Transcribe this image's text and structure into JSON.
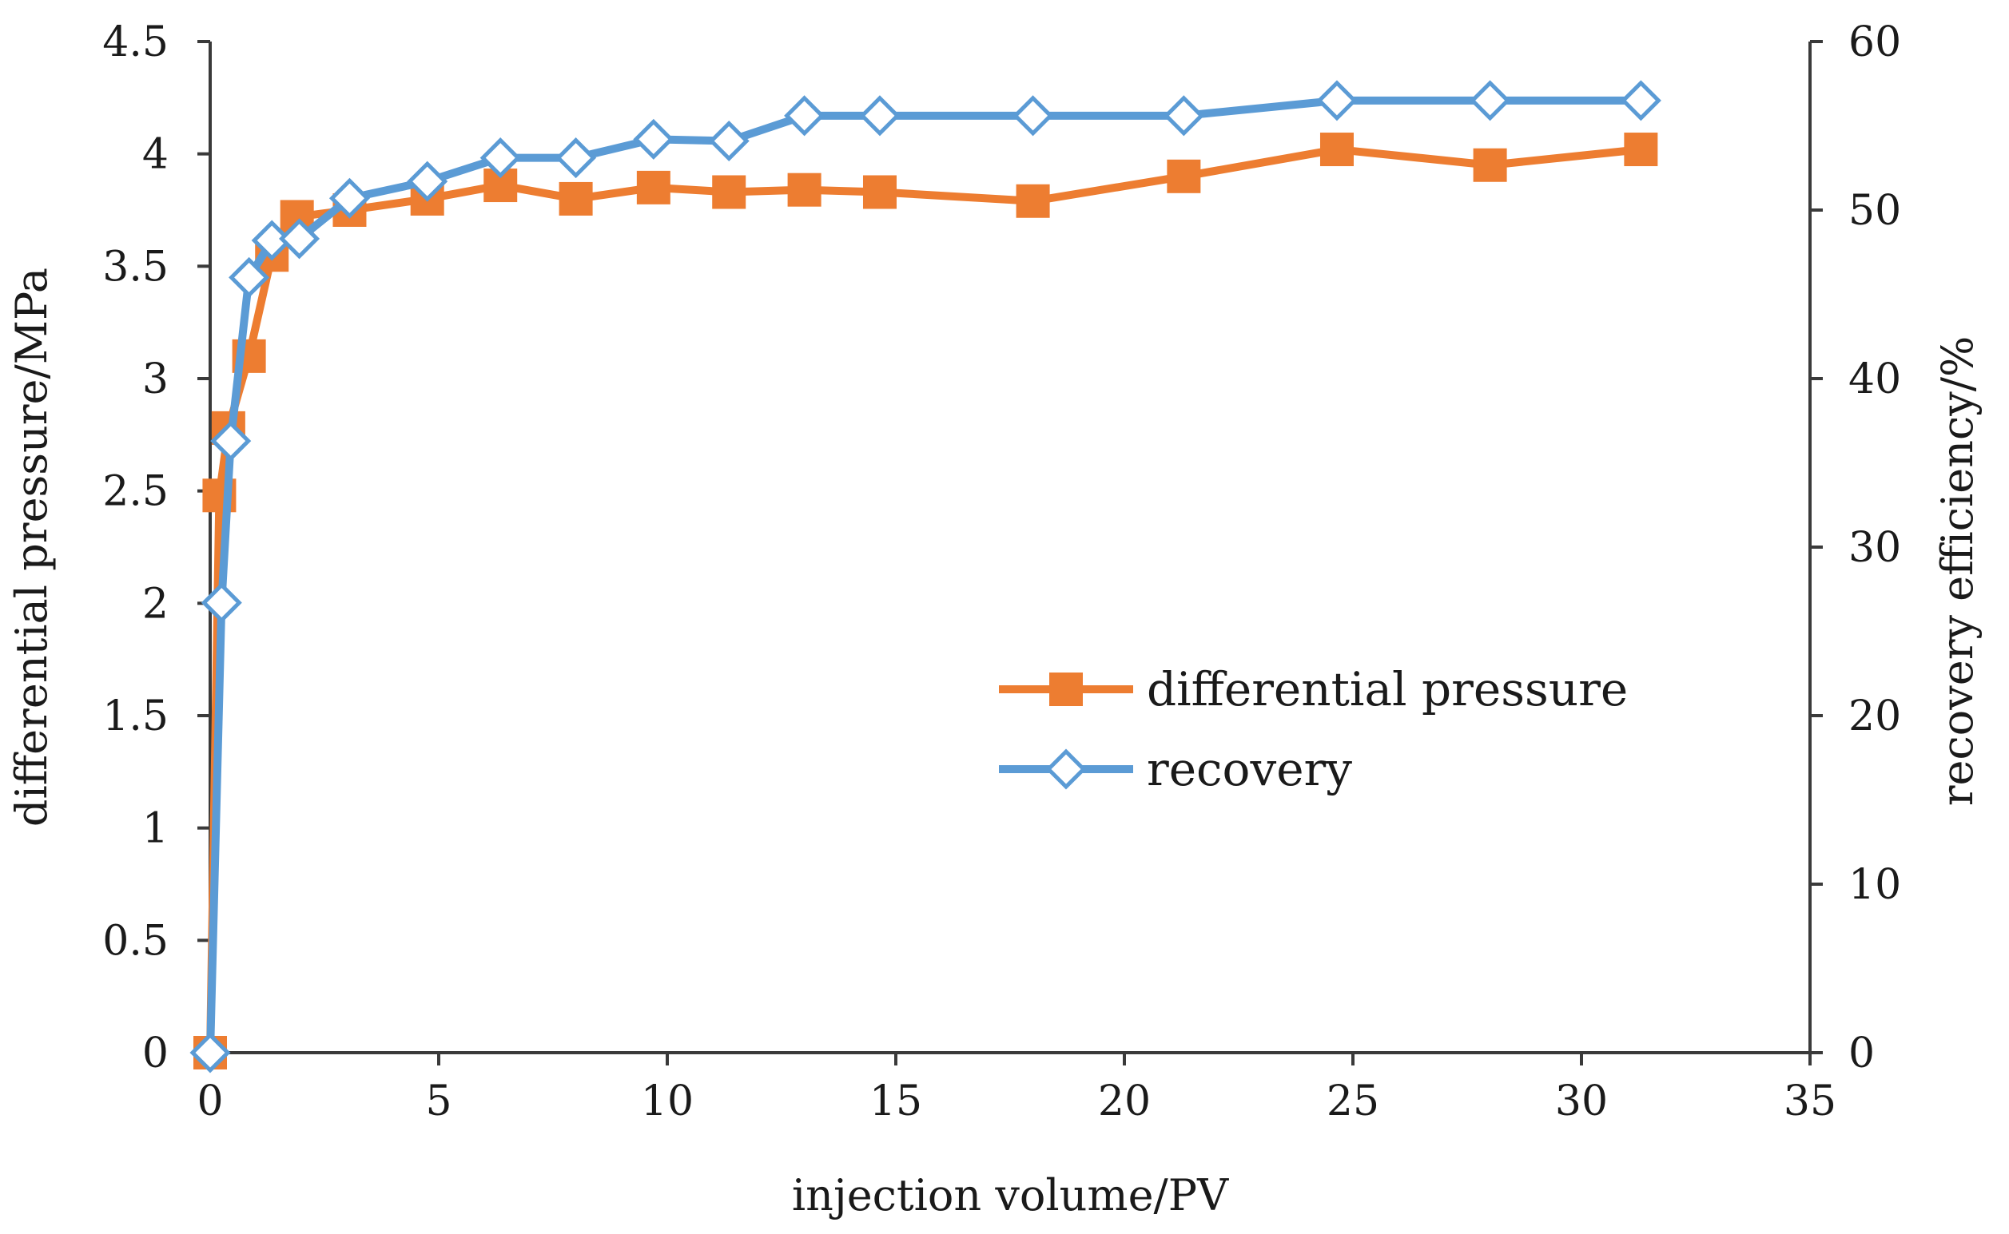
{
  "chart_data": {
    "type": "line",
    "title": "",
    "xlabel": "injection volume/PV",
    "ylabel": "differential pressure/MPa",
    "y2label": "recovery efficiency/%",
    "xlim": [
      0,
      35
    ],
    "ylim": [
      0,
      4.5
    ],
    "y2lim": [
      0,
      60
    ],
    "x_ticks": [
      "0",
      "5",
      "10",
      "15",
      "20",
      "25",
      "30",
      "35"
    ],
    "y_ticks": [
      "0",
      "0.5",
      "1",
      "1.5",
      "2",
      "2.5",
      "3",
      "3.5",
      "4",
      "4.5"
    ],
    "y2_ticks": [
      "0",
      "10",
      "20",
      "30",
      "40",
      "50",
      "60"
    ],
    "grid": false,
    "legend_position": "center-right",
    "series": [
      {
        "name": "differential pressure",
        "axis": "left",
        "color": "#ED7D31",
        "marker": "square",
        "x": [
          0,
          0.2,
          0.4,
          0.85,
          1.35,
          1.9,
          3.05,
          4.75,
          6.35,
          8.0,
          9.7,
          11.35,
          13.0,
          14.65,
          18.0,
          21.3,
          24.65,
          28.0,
          31.3
        ],
        "values": [
          0,
          2.48,
          2.78,
          3.1,
          3.55,
          3.72,
          3.75,
          3.8,
          3.86,
          3.8,
          3.85,
          3.83,
          3.84,
          3.83,
          3.79,
          3.9,
          4.02,
          3.95,
          4.02
        ]
      },
      {
        "name": "recovery",
        "axis": "right",
        "color": "#5B9BD5",
        "marker": "diamond",
        "x": [
          0,
          0.25,
          0.45,
          0.85,
          1.35,
          1.95,
          3.05,
          4.75,
          6.35,
          8.0,
          9.7,
          11.35,
          13.0,
          14.65,
          18.0,
          21.3,
          24.65,
          28.0,
          31.3
        ],
        "values": [
          0,
          26.7,
          36.3,
          46.0,
          48.2,
          48.3,
          50.7,
          51.7,
          53.1,
          53.1,
          54.2,
          54.1,
          55.6,
          55.6,
          55.6,
          55.6,
          56.5,
          56.5,
          56.5
        ]
      }
    ]
  }
}
